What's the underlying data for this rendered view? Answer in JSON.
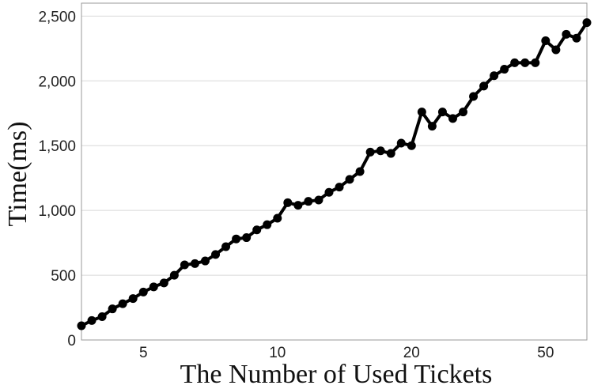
{
  "chart_data": {
    "type": "line",
    "title": "",
    "xlabel": "The Number of Used Tickets",
    "ylabel": "Time(ms)",
    "ylim": [
      0,
      2600
    ],
    "y_ticks": [
      0,
      500,
      1000,
      1500,
      2000,
      2500
    ],
    "y_tick_labels": [
      "0",
      "500",
      "1,000",
      "1,500",
      "2,000",
      "2,500"
    ],
    "x_tick_labels": [
      {
        "label": "5",
        "x": 7
      },
      {
        "label": "10",
        "x": 20
      },
      {
        "label": "20",
        "x": 33
      },
      {
        "label": "50",
        "x": 46
      }
    ],
    "grid": true,
    "x": [
      1,
      2,
      3,
      4,
      5,
      6,
      7,
      8,
      9,
      10,
      11,
      12,
      13,
      14,
      15,
      16,
      17,
      18,
      19,
      20,
      21,
      22,
      23,
      24,
      25,
      26,
      27,
      28,
      29,
      30,
      31,
      32,
      33,
      34,
      35,
      36,
      37,
      38,
      39,
      40,
      41,
      42,
      43,
      44,
      45,
      46,
      47,
      48,
      49,
      50
    ],
    "series": [
      {
        "values": [
          110,
          150,
          180,
          240,
          280,
          320,
          370,
          410,
          440,
          500,
          580,
          590,
          610,
          660,
          720,
          780,
          790,
          850,
          890,
          940,
          1060,
          1040,
          1070,
          1080,
          1140,
          1180,
          1240,
          1300,
          1450,
          1460,
          1440,
          1520,
          1500,
          1760,
          1650,
          1760,
          1710,
          1760,
          1880,
          1960,
          2040,
          2090,
          2140,
          2140,
          2140,
          2310,
          2240,
          2360,
          2330,
          2450
        ]
      }
    ],
    "colors": {
      "line": "#000000",
      "grid": "#d8d8d8",
      "frame": "#9a9a9a"
    }
  }
}
